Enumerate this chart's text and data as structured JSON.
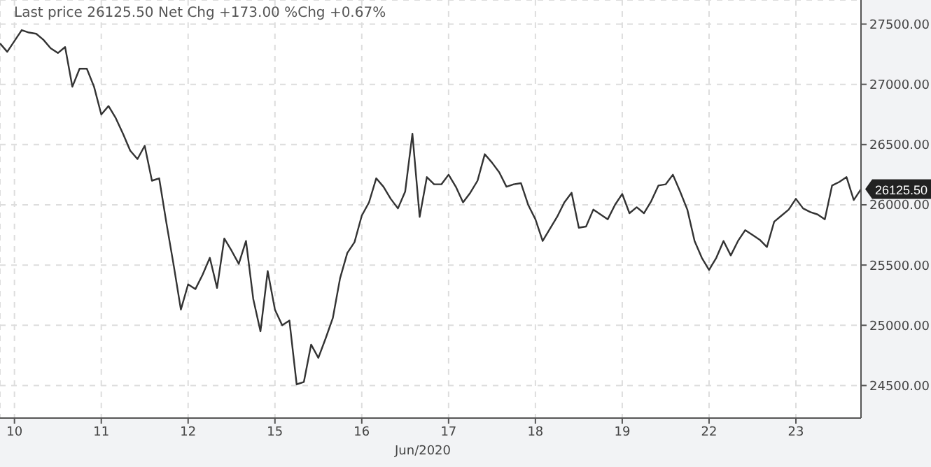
{
  "chart_data": {
    "type": "line",
    "title": "Last price 26125.50 Net Chg +173.00 %Chg +0.67%",
    "xlabel": "Jun/2020",
    "categories": [
      null,
      null,
      "10",
      null,
      null,
      null,
      null,
      null,
      null,
      null,
      null,
      null,
      null,
      null,
      "11",
      null,
      null,
      null,
      null,
      null,
      null,
      null,
      null,
      null,
      null,
      null,
      "12",
      null,
      null,
      null,
      null,
      null,
      null,
      null,
      null,
      null,
      null,
      null,
      "15",
      null,
      null,
      null,
      null,
      null,
      null,
      null,
      null,
      null,
      null,
      null,
      "16",
      null,
      null,
      null,
      null,
      null,
      null,
      null,
      null,
      null,
      null,
      null,
      "17",
      null,
      null,
      null,
      null,
      null,
      null,
      null,
      null,
      null,
      null,
      null,
      "18",
      null,
      null,
      null,
      null,
      null,
      null,
      null,
      null,
      null,
      null,
      null,
      "19",
      null,
      null,
      null,
      null,
      null,
      null,
      null,
      null,
      null,
      null,
      null,
      "22",
      null,
      null,
      null,
      null,
      null,
      null,
      null,
      null,
      null,
      null,
      null,
      "23",
      null,
      null,
      null,
      null,
      null,
      null,
      null,
      null,
      null
    ],
    "series": [
      {
        "color": "#333333",
        "values": [
          27340,
          27270,
          27360,
          27450,
          27430,
          27420,
          27370,
          27300,
          27260,
          27310,
          26980,
          27130,
          27130,
          26980,
          26750,
          26820,
          26720,
          26590,
          26450,
          26380,
          26490,
          26200,
          26220,
          25850,
          25500,
          25130,
          25340,
          25300,
          25420,
          25560,
          25310,
          25720,
          25620,
          25510,
          25700,
          25220,
          24950,
          25450,
          25130,
          25000,
          25040,
          24510,
          24530,
          24840,
          24730,
          24890,
          25060,
          25390,
          25600,
          25690,
          25910,
          26020,
          26220,
          26150,
          26050,
          25970,
          26110,
          26590,
          25900,
          26230,
          26170,
          26170,
          26250,
          26150,
          26020,
          26100,
          26200,
          26420,
          26350,
          26270,
          26150,
          26170,
          26180,
          26000,
          25880,
          25700,
          25800,
          25900,
          26020,
          26100,
          25810,
          25820,
          25960,
          25920,
          25880,
          26000,
          26090,
          25930,
          25980,
          25930,
          26030,
          26160,
          26170,
          26250,
          26110,
          25960,
          25700,
          25560,
          25460,
          25560,
          25700,
          25580,
          25700,
          25790,
          25750,
          25710,
          25650,
          25860,
          25910,
          25960,
          26050,
          25970,
          25940,
          25920,
          25880,
          26160,
          26190,
          26230,
          26040,
          26130
        ]
      }
    ],
    "ylim": [
      24230,
      27700
    ],
    "yticks": [
      {
        "value": 24500,
        "label": "24500.00"
      },
      {
        "value": 25000,
        "label": "25000.00"
      },
      {
        "value": 25500,
        "label": "25500.00"
      },
      {
        "value": 26000,
        "label": "26000.00"
      },
      {
        "value": 26500,
        "label": "26500.00"
      },
      {
        "value": 27000,
        "label": "27000.00"
      },
      {
        "value": 27500,
        "label": "27500.00"
      }
    ],
    "annotations": [
      "26125.50"
    ],
    "grid": true,
    "marker": "none",
    "line_style": "solid",
    "legend": false
  }
}
